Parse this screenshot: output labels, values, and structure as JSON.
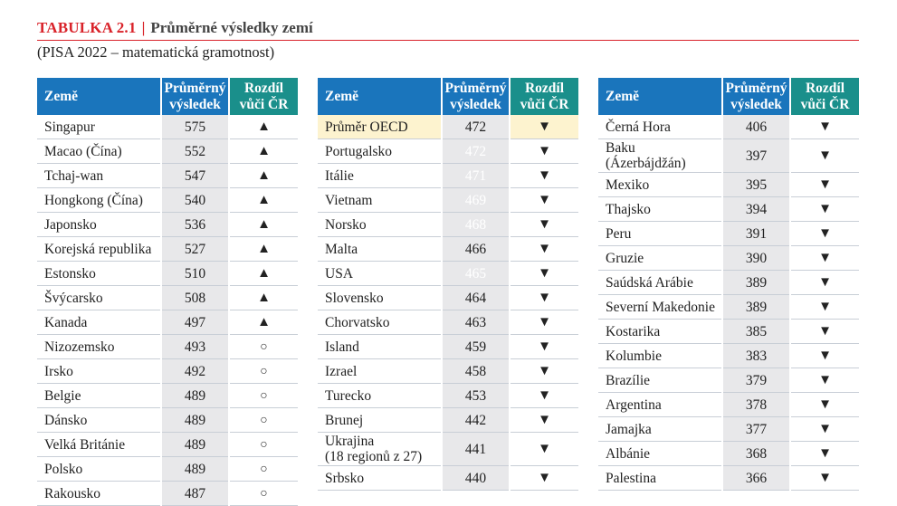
{
  "header": {
    "title_prefix": "TABULKA 2.1",
    "separator": "|",
    "title": "Průměrné výsledky zemí",
    "subtitle": "(PISA 2022 – matematická gramotnost)"
  },
  "columns": {
    "name": "Země",
    "score": [
      "Průměrný",
      "výsledek"
    ],
    "diff": [
      "Rozdíl",
      "vůči ČR"
    ]
  },
  "symbols": {
    "up": "▲",
    "down": "▼",
    "same": "○"
  },
  "colors": {
    "header_blue": "#1a75bc",
    "header_teal": "#1a8f8b",
    "title_red": "#d9232a",
    "score_grey": "#e8e8ea",
    "score_mid_blue": "#4aa0e0",
    "score_light_blue": "#9dc8ec",
    "oecd_highlight": "#fdf3cf"
  },
  "tables": [
    {
      "rows": [
        {
          "name": "Singapur",
          "score": "575",
          "diff": "up",
          "shade": "grey"
        },
        {
          "name": "Macao (Čína)",
          "score": "552",
          "diff": "up",
          "shade": "grey"
        },
        {
          "name": "Tchaj-wan",
          "score": "547",
          "diff": "up",
          "shade": "grey"
        },
        {
          "name": "Hongkong (Čína)",
          "score": "540",
          "diff": "up",
          "shade": "grey"
        },
        {
          "name": "Japonsko",
          "score": "536",
          "diff": "up",
          "shade": "grey"
        },
        {
          "name": "Korejská republika",
          "score": "527",
          "diff": "up",
          "shade": "grey"
        },
        {
          "name": "Estonsko",
          "score": "510",
          "diff": "up",
          "shade": "grey"
        },
        {
          "name": "Švýcarsko",
          "score": "508",
          "diff": "up",
          "shade": "grey"
        },
        {
          "name": "Kanada",
          "score": "497",
          "diff": "up",
          "shade": "grey"
        },
        {
          "name": "Nizozemsko",
          "score": "493",
          "diff": "same",
          "shade": "grey"
        },
        {
          "name": "Irsko",
          "score": "492",
          "diff": "same",
          "shade": "grey"
        },
        {
          "name": "Belgie",
          "score": "489",
          "diff": "same",
          "shade": "grey"
        },
        {
          "name": "Dánsko",
          "score": "489",
          "diff": "same",
          "shade": "grey"
        },
        {
          "name": "Velká Británie",
          "score": "489",
          "diff": "same",
          "shade": "grey"
        },
        {
          "name": "Polsko",
          "score": "489",
          "diff": "same",
          "shade": "grey"
        },
        {
          "name": "Rakousko",
          "score": "487",
          "diff": "same",
          "shade": "grey"
        }
      ]
    },
    {
      "rows": [
        {
          "name": "Průměr OECD",
          "score": "472",
          "diff": "down",
          "shade": "oecd"
        },
        {
          "name": "Portugalsko",
          "score": "472",
          "diff": "down",
          "shade": "mid"
        },
        {
          "name": "Itálie",
          "score": "471",
          "diff": "down",
          "shade": "mid"
        },
        {
          "name": "Vietnam",
          "score": "469",
          "diff": "down",
          "shade": "mid"
        },
        {
          "name": "Norsko",
          "score": "468",
          "diff": "down",
          "shade": "mid"
        },
        {
          "name": "Malta",
          "score": "466",
          "diff": "down",
          "shade": "lt"
        },
        {
          "name": "USA",
          "score": "465",
          "diff": "down",
          "shade": "mid"
        },
        {
          "name": "Slovensko",
          "score": "464",
          "diff": "down",
          "shade": "lt"
        },
        {
          "name": "Chorvatsko",
          "score": "463",
          "diff": "down",
          "shade": "lt"
        },
        {
          "name": "Island",
          "score": "459",
          "diff": "down",
          "shade": "lt"
        },
        {
          "name": "Izrael",
          "score": "458",
          "diff": "down",
          "shade": "lt"
        },
        {
          "name": "Turecko",
          "score": "453",
          "diff": "down",
          "shade": "lt"
        },
        {
          "name": "Brunej",
          "score": "442",
          "diff": "down",
          "shade": "lt"
        },
        {
          "name": "Ukrajina",
          "name2": "(18 regionů z 27)",
          "score": "441",
          "diff": "down",
          "shade": "lt"
        },
        {
          "name": "Srbsko",
          "score": "440",
          "diff": "down",
          "shade": "lt"
        }
      ]
    },
    {
      "rows": [
        {
          "name": "Černá Hora",
          "score": "406",
          "diff": "down",
          "shade": "lt"
        },
        {
          "name": "Baku",
          "name2": "(Ázerbájdžán)",
          "score": "397",
          "diff": "down",
          "shade": "lt"
        },
        {
          "name": "Mexiko",
          "score": "395",
          "diff": "down",
          "shade": "lt"
        },
        {
          "name": "Thajsko",
          "score": "394",
          "diff": "down",
          "shade": "lt"
        },
        {
          "name": "Peru",
          "score": "391",
          "diff": "down",
          "shade": "lt"
        },
        {
          "name": "Gruzie",
          "score": "390",
          "diff": "down",
          "shade": "lt"
        },
        {
          "name": "Saúdská Arábie",
          "score": "389",
          "diff": "down",
          "shade": "lt"
        },
        {
          "name": "Severní Makedonie",
          "score": "389",
          "diff": "down",
          "shade": "lt"
        },
        {
          "name": "Kostarika",
          "score": "385",
          "diff": "down",
          "shade": "lt"
        },
        {
          "name": "Kolumbie",
          "score": "383",
          "diff": "down",
          "shade": "lt"
        },
        {
          "name": "Brazílie",
          "score": "379",
          "diff": "down",
          "shade": "lt"
        },
        {
          "name": "Argentina",
          "score": "378",
          "diff": "down",
          "shade": "lt"
        },
        {
          "name": "Jamajka",
          "score": "377",
          "diff": "down",
          "shade": "lt"
        },
        {
          "name": "Albánie",
          "score": "368",
          "diff": "down",
          "shade": "lt"
        },
        {
          "name": "Palestina",
          "score": "366",
          "diff": "down",
          "shade": "lt"
        }
      ]
    }
  ]
}
